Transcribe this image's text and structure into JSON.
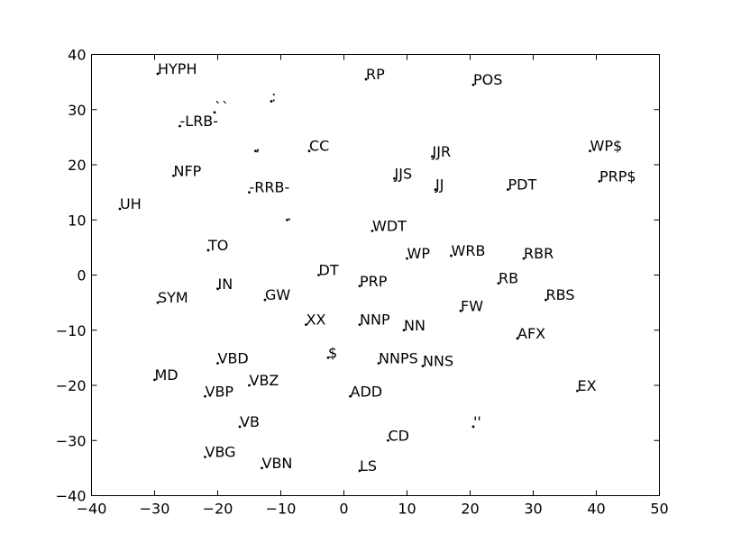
{
  "chart_data": {
    "type": "scatter",
    "title": "",
    "xlabel": "",
    "ylabel": "",
    "xlim": [
      -40,
      50
    ],
    "ylim": [
      -40,
      40
    ],
    "xticks": [
      -40,
      -30,
      -20,
      -10,
      0,
      10,
      20,
      30,
      40,
      50
    ],
    "yticks": [
      -40,
      -30,
      -20,
      -10,
      0,
      10,
      20,
      30,
      40
    ],
    "grid": false,
    "point_color": "#000000",
    "points": [
      {
        "label": "HYPH",
        "x": -29.5,
        "y": 36.5
      },
      {
        "label": "RP",
        "x": 3.5,
        "y": 35.5
      },
      {
        "label": "POS",
        "x": 20.5,
        "y": 34.5
      },
      {
        "label": ":",
        "x": -11.5,
        "y": 31.5
      },
      {
        "label": "``",
        "x": -20.5,
        "y": 29.5
      },
      {
        "label": "-LRB-",
        "x": -26.0,
        "y": 27.0
      },
      {
        "label": ",",
        "x": -14.0,
        "y": 22.5
      },
      {
        "label": "CC",
        "x": -5.5,
        "y": 22.5
      },
      {
        "label": "JJR",
        "x": 14.0,
        "y": 21.5
      },
      {
        "label": "WP$",
        "x": 39.0,
        "y": 22.5
      },
      {
        "label": "NFP",
        "x": -27.0,
        "y": 18.0
      },
      {
        "label": "JJS",
        "x": 8.0,
        "y": 17.5
      },
      {
        "label": "PRP$",
        "x": 40.5,
        "y": 17.0
      },
      {
        "label": "JJ",
        "x": 14.5,
        "y": 15.5
      },
      {
        "label": "PDT",
        "x": 26.0,
        "y": 15.5
      },
      {
        "label": "-RRB-",
        "x": -15.0,
        "y": 15.0
      },
      {
        "label": "UH",
        "x": -35.5,
        "y": 12.0
      },
      {
        "label": ".",
        "x": -9.0,
        "y": 10.0
      },
      {
        "label": "WDT",
        "x": 4.5,
        "y": 8.0
      },
      {
        "label": "TO",
        "x": -21.5,
        "y": 4.5
      },
      {
        "label": "WP",
        "x": 10.0,
        "y": 3.0
      },
      {
        "label": "WRB",
        "x": 17.0,
        "y": 3.5
      },
      {
        "label": "RBR",
        "x": 28.5,
        "y": 3.0
      },
      {
        "label": "DT",
        "x": -4.0,
        "y": 0.0
      },
      {
        "label": "PRP",
        "x": 2.5,
        "y": -2.0
      },
      {
        "label": "RB",
        "x": 24.5,
        "y": -1.5
      },
      {
        "label": "IN",
        "x": -20.0,
        "y": -2.5
      },
      {
        "label": "GW",
        "x": -12.5,
        "y": -4.5
      },
      {
        "label": "RBS",
        "x": 32.0,
        "y": -4.5
      },
      {
        "label": "SYM",
        "x": -29.5,
        "y": -5.0
      },
      {
        "label": "FW",
        "x": 18.5,
        "y": -6.5
      },
      {
        "label": "XX",
        "x": -6.0,
        "y": -9.0
      },
      {
        "label": "NNP",
        "x": 2.5,
        "y": -9.0
      },
      {
        "label": "NN",
        "x": 9.5,
        "y": -10.0
      },
      {
        "label": "AFX",
        "x": 27.5,
        "y": -11.5
      },
      {
        "label": "$",
        "x": -2.5,
        "y": -15.0
      },
      {
        "label": "NNPS",
        "x": 5.5,
        "y": -16.0
      },
      {
        "label": "VBD",
        "x": -20.0,
        "y": -16.0
      },
      {
        "label": "NNS",
        "x": 12.5,
        "y": -16.5
      },
      {
        "label": "MD",
        "x": -30.0,
        "y": -19.0
      },
      {
        "label": "VBZ",
        "x": -15.0,
        "y": -20.0
      },
      {
        "label": "EX",
        "x": 37.0,
        "y": -21.0
      },
      {
        "label": "VBP",
        "x": -22.0,
        "y": -22.0
      },
      {
        "label": "ADD",
        "x": 1.0,
        "y": -22.0
      },
      {
        "label": "''",
        "x": 20.5,
        "y": -27.5
      },
      {
        "label": "VB",
        "x": -16.5,
        "y": -27.5
      },
      {
        "label": "CD",
        "x": 7.0,
        "y": -30.0
      },
      {
        "label": "VBG",
        "x": -22.0,
        "y": -33.0
      },
      {
        "label": "VBN",
        "x": -13.0,
        "y": -35.0
      },
      {
        "label": "LS",
        "x": 2.5,
        "y": -35.5
      }
    ]
  }
}
